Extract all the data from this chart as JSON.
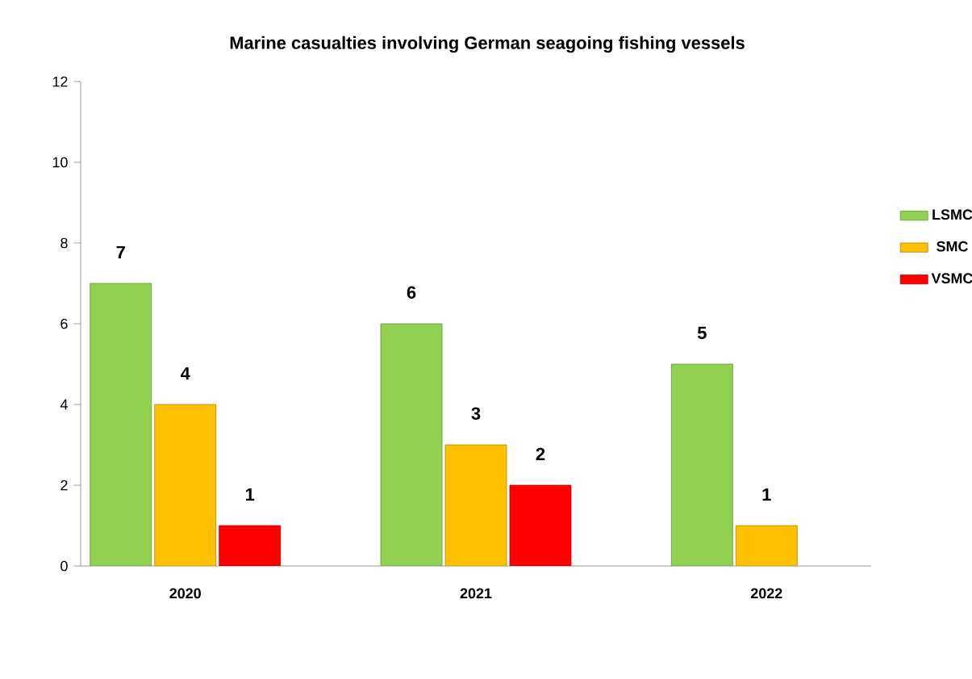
{
  "chart_data": {
    "type": "bar",
    "title": "Marine casualties involving German seagoing fishing vessels",
    "categories": [
      "2020",
      "2021",
      "2022"
    ],
    "series": [
      {
        "name": "LSMC",
        "color": "#92d050",
        "values": [
          7,
          6,
          5
        ]
      },
      {
        "name": "SMC",
        "color": "#ffc000",
        "values": [
          4,
          3,
          1
        ]
      },
      {
        "name": "VSMC",
        "color": "#ff0000",
        "values": [
          1,
          2,
          null
        ]
      }
    ],
    "ylim": [
      0,
      12
    ],
    "yticks": [
      0,
      2,
      4,
      6,
      8,
      10,
      12
    ],
    "grid": false,
    "legend": "right",
    "data_labels": true
  }
}
